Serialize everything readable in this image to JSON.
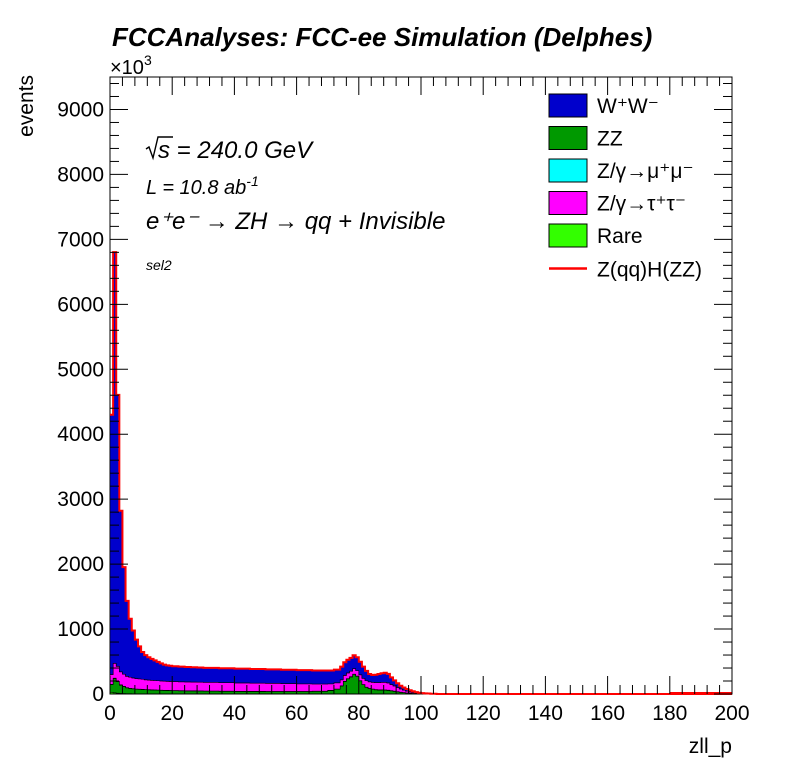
{
  "chart_data": {
    "type": "area",
    "stacked": true,
    "title": "FCCAnalyses: FCC-ee Simulation (Delphes)",
    "xlabel": "zll_p",
    "ylabel": "events",
    "y_exponent_label": "×10",
    "y_exponent_power": "3",
    "xlim": [
      0,
      200
    ],
    "ylim": [
      0,
      9500
    ],
    "x_ticks": [
      "0",
      "20",
      "40",
      "60",
      "80",
      "100",
      "120",
      "140",
      "160",
      "180",
      "200"
    ],
    "y_ticks": [
      "0",
      "1000",
      "2000",
      "3000",
      "4000",
      "5000",
      "6000",
      "7000",
      "8000",
      "9000"
    ],
    "annotations": {
      "sqrt_s": "s",
      "energy": " = 240.0 GeV",
      "lumi_base": "L = 10.8 ab",
      "lumi_exp": "-1",
      "process": "e⁺e⁻ → ZH → qq + Invisible",
      "selection": "sel2"
    },
    "legend_placement": "top-right",
    "x": [
      0,
      1,
      2,
      3,
      4,
      5,
      6,
      7,
      8,
      9,
      10,
      11,
      12,
      13,
      14,
      15,
      16,
      17,
      18,
      19,
      20,
      22,
      24,
      26,
      28,
      30,
      35,
      40,
      45,
      50,
      55,
      60,
      65,
      70,
      72,
      74,
      75,
      76,
      77,
      78,
      79,
      80,
      81,
      82,
      83,
      84,
      85,
      86,
      87,
      88,
      89,
      90,
      91,
      92,
      93,
      94,
      95,
      96,
      97,
      98,
      99,
      100,
      101,
      102,
      103,
      104,
      105,
      110,
      120,
      140,
      160,
      180,
      200
    ],
    "series": [
      {
        "name": "Rare",
        "legend": "Rare",
        "color": "#33ff00",
        "values": [
          25,
          18,
          12,
          8,
          6,
          5,
          5,
          4,
          4,
          4,
          4,
          4,
          4,
          4,
          4,
          4,
          4,
          4,
          4,
          4,
          4,
          3,
          3,
          3,
          3,
          3,
          3,
          3,
          3,
          3,
          3,
          3,
          3,
          3,
          3,
          3,
          3,
          3,
          3,
          3,
          3,
          3,
          3,
          3,
          3,
          3,
          3,
          3,
          3,
          3,
          3,
          3,
          3,
          3,
          2,
          2,
          2,
          2,
          2,
          1,
          1,
          1,
          1,
          1,
          1,
          1,
          0,
          0,
          0,
          0,
          0,
          0,
          0
        ]
      },
      {
        "name": "ZZ",
        "legend": "ZZ",
        "color": "#009900",
        "values": [
          120,
          220,
          180,
          130,
          110,
          90,
          80,
          75,
          70,
          68,
          65,
          62,
          60,
          58,
          56,
          54,
          52,
          50,
          49,
          48,
          47,
          45,
          44,
          43,
          42,
          40,
          38,
          36,
          35,
          34,
          34,
          34,
          38,
          50,
          70,
          120,
          190,
          230,
          260,
          300,
          270,
          200,
          140,
          100,
          80,
          70,
          62,
          58,
          58,
          56,
          52,
          45,
          38,
          30,
          24,
          18,
          12,
          8,
          5,
          3,
          2,
          1,
          1,
          0,
          0,
          0,
          0,
          0,
          0,
          0,
          0,
          0,
          0
        ]
      },
      {
        "name": "Zmumu",
        "legend": "Z/γ→μ⁺μ⁻",
        "color": "#00ffff",
        "values": [
          5,
          5,
          4,
          4,
          3,
          3,
          3,
          3,
          3,
          3,
          3,
          3,
          3,
          3,
          3,
          3,
          3,
          3,
          3,
          3,
          3,
          3,
          3,
          3,
          3,
          3,
          3,
          3,
          3,
          3,
          3,
          3,
          3,
          3,
          3,
          3,
          3,
          3,
          3,
          3,
          3,
          3,
          3,
          3,
          3,
          3,
          3,
          3,
          3,
          3,
          3,
          3,
          3,
          3,
          2,
          2,
          2,
          2,
          2,
          1,
          1,
          1,
          1,
          1,
          0,
          0,
          0,
          0,
          0,
          0,
          0,
          0,
          0
        ]
      },
      {
        "name": "Ztautau",
        "legend": "Z/γ→τ⁺τ⁻",
        "color": "#ff00ff",
        "values": [
          150,
          230,
          230,
          200,
          185,
          175,
          170,
          165,
          160,
          158,
          155,
          150,
          148,
          146,
          145,
          143,
          142,
          141,
          140,
          139,
          138,
          137,
          136,
          135,
          134,
          133,
          130,
          128,
          126,
          124,
          120,
          116,
          110,
          100,
          96,
          92,
          90,
          88,
          86,
          84,
          84,
          90,
          96,
          100,
          102,
          104,
          108,
          112,
          116,
          118,
          112,
          95,
          80,
          65,
          50,
          38,
          28,
          20,
          14,
          9,
          6,
          4,
          2,
          2,
          1,
          1,
          0,
          0,
          0,
          0,
          0,
          0,
          0
        ]
      },
      {
        "name": "WW",
        "legend": "W⁺W⁻",
        "color": "#0000cc",
        "values": [
          4000,
          6330,
          4180,
          2480,
          1650,
          1160,
          900,
          730,
          600,
          500,
          420,
          380,
          350,
          330,
          310,
          290,
          270,
          255,
          245,
          240,
          236,
          233,
          230,
          228,
          226,
          224,
          222,
          220,
          218,
          216,
          214,
          212,
          208,
          205,
          203,
          203,
          203,
          204,
          205,
          206,
          205,
          200,
          180,
          150,
          120,
          112,
          120,
          132,
          140,
          148,
          140,
          110,
          85,
          65,
          50,
          40,
          32,
          26,
          20,
          15,
          10,
          7,
          5,
          3,
          2,
          2,
          0,
          0,
          0,
          0,
          0,
          0,
          0
        ]
      }
    ],
    "signal": {
      "name": "ZqqHZZ",
      "legend": "Z(qq)H(ZZ)",
      "color": "#ff0000",
      "values": "equal to stack total"
    }
  }
}
